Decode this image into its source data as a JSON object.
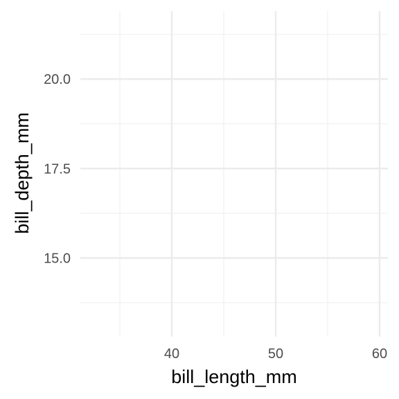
{
  "chart_data": {
    "type": "scatter",
    "title": "",
    "xlabel": "bill_length_mm",
    "ylabel": "bill_depth_mm",
    "xlim": [
      31.2,
      60.8
    ],
    "ylim": [
      12.8,
      21.9
    ],
    "x_ticks": [
      40,
      50,
      60
    ],
    "x_minor_ticks": [
      35,
      45,
      55
    ],
    "y_ticks": [
      15.0,
      17.5,
      20.0
    ],
    "y_minor_ticks": [
      13.75,
      16.25,
      18.75,
      21.25
    ],
    "x_tick_labels": [
      "40",
      "50",
      "60"
    ],
    "y_tick_labels": [
      "15.0",
      "17.5",
      "20.0"
    ],
    "series": [],
    "grid": true,
    "background": "#ffffff",
    "grid_color_major": "#ebebeb",
    "grid_color_minor": "#f2f2f2",
    "legend": "none"
  }
}
